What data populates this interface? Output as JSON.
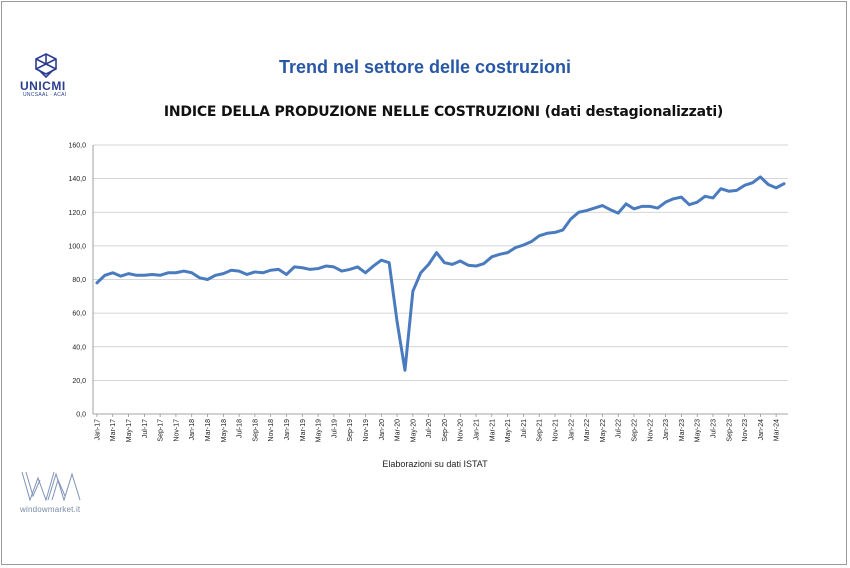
{
  "slide": {
    "title": "Trend nel settore delle costruzioni",
    "logo_name": "UNICMI",
    "logo_sub": "UNCSAAL · ACAI",
    "footer_brand": "windowmarket.it",
    "source_note": "Elaborazioni su dati ISTAT"
  },
  "colors": {
    "title": "#2757a6",
    "line": "#4a7bbf",
    "grid": "#c8c8c8"
  },
  "chart_data": {
    "type": "line",
    "title": "INDICE DELLA PRODUZIONE NELLE COSTRUZIONI (dati destagionalizzati)",
    "xlabel": "",
    "ylabel": "",
    "ylim": [
      0,
      160
    ],
    "yticks": [
      "0,0",
      "20,0",
      "40,0",
      "60,0",
      "80,0",
      "100,0",
      "120,0",
      "140,0",
      "160,0"
    ],
    "grid": true,
    "legend": "none",
    "x": [
      "Jan-17",
      "Feb-17",
      "Mar-17",
      "Apr-17",
      "May-17",
      "Jun-17",
      "Jul-17",
      "Aug-17",
      "Sep-17",
      "Oct-17",
      "Nov-17",
      "Dec-17",
      "Jan-18",
      "Feb-18",
      "Mar-18",
      "Apr-18",
      "May-18",
      "Jun-18",
      "Jul-18",
      "Aug-18",
      "Sep-18",
      "Oct-18",
      "Nov-18",
      "Dec-18",
      "Jan-19",
      "Feb-19",
      "Mar-19",
      "Apr-19",
      "May-19",
      "Jun-19",
      "Jul-19",
      "Aug-19",
      "Sep-19",
      "Oct-19",
      "Nov-19",
      "Dec-19",
      "Jan-20",
      "Feb-20",
      "Mar-20",
      "Apr-20",
      "May-20",
      "Jun-20",
      "Jul-20",
      "Aug-20",
      "Sep-20",
      "Oct-20",
      "Nov-20",
      "Dec-20",
      "Jan-21",
      "Feb-21",
      "Mar-21",
      "Apr-21",
      "May-21",
      "Jun-21",
      "Jul-21",
      "Aug-21",
      "Sep-21",
      "Oct-21",
      "Nov-21",
      "Dec-21",
      "Jan-22",
      "Feb-22",
      "Mar-22",
      "Apr-22",
      "May-22",
      "Jun-22",
      "Jul-22",
      "Aug-22",
      "Sep-22",
      "Oct-22",
      "Nov-22",
      "Dec-22",
      "Jan-23",
      "Feb-23",
      "Mar-23",
      "Apr-23",
      "May-23",
      "Jun-23",
      "Jul-23",
      "Aug-23",
      "Sep-23",
      "Oct-23",
      "Nov-23",
      "Dec-23",
      "Jan-24",
      "Feb-24",
      "Mar-24",
      "Apr-24"
    ],
    "x_tick_labels": [
      "Jan-17",
      "Mar-17",
      "May-17",
      "Jul-17",
      "Sep-17",
      "Nov-17",
      "Jan-18",
      "Mar-18",
      "May-18",
      "Jul-18",
      "Sep-18",
      "Nov-18",
      "Jan-19",
      "Mar-19",
      "May-19",
      "Jul-19",
      "Sep-19",
      "Nov-19",
      "Jan-20",
      "Mar-20",
      "May-20",
      "Jul-20",
      "Sep-20",
      "Nov-20",
      "Jan-21",
      "Mar-21",
      "May-21",
      "Jul-21",
      "Sep-21",
      "Nov-21",
      "Jan-22",
      "Mar-22",
      "May-22",
      "Jul-22",
      "Sep-22",
      "Nov-22",
      "Jan-23",
      "Mar-23",
      "May-23",
      "Jul-23",
      "Sep-23",
      "Nov-23",
      "Jan-24",
      "Mar-24"
    ],
    "series": [
      {
        "values": [
          78,
          82.5,
          84,
          82,
          83.5,
          82.5,
          82.5,
          83,
          82.5,
          84,
          84,
          85,
          84,
          81,
          80,
          82.5,
          83.5,
          85.5,
          85,
          83,
          84.5,
          84,
          85.5,
          86,
          83,
          87.5,
          87,
          86,
          86.5,
          88,
          87.5,
          85,
          86,
          87.5,
          84,
          88,
          91.5,
          90,
          55,
          26,
          73,
          84,
          89,
          96,
          90,
          89,
          91,
          88.5,
          88,
          89.5,
          93.5,
          95,
          96,
          99,
          100.5,
          102.5,
          106,
          107.5,
          108,
          109.5,
          116,
          120,
          121,
          122.5,
          124,
          121.5,
          119.5,
          125,
          122,
          123.5,
          123.5,
          122.5,
          126,
          128,
          129,
          124.5,
          126,
          129.5,
          128.5,
          134,
          132.5,
          133,
          136,
          137.5,
          141,
          136.5,
          134.5,
          137
        ]
      }
    ]
  }
}
